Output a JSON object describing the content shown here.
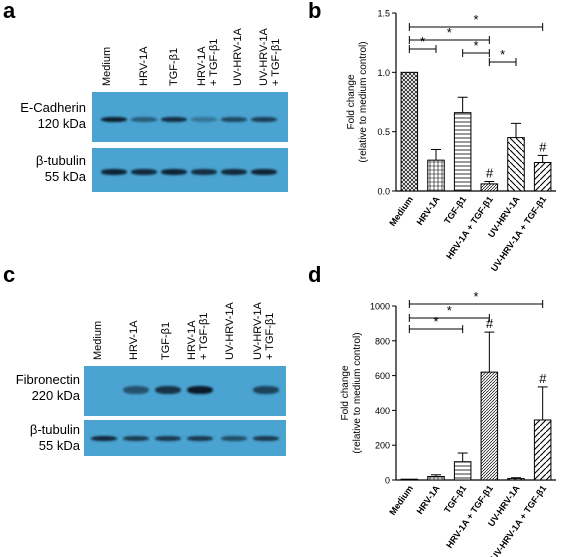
{
  "panels": {
    "a": "a",
    "b": "b",
    "c": "c",
    "d": "d"
  },
  "blot_a": {
    "lanes": [
      {
        "l1": "Medium",
        "l2": ""
      },
      {
        "l1": "HRV-1A",
        "l2": ""
      },
      {
        "l1": "TGF-β1",
        "l2": ""
      },
      {
        "l1": "HRV-1A",
        "l2": "+ TGF-β1"
      },
      {
        "l1": "UV-HRV-1A",
        "l2": ""
      },
      {
        "l1": "UV-HRV-1A",
        "l2": "+ TGF-β1"
      }
    ],
    "row1_label": [
      "E-Cadherin",
      "120 kDa"
    ],
    "row2_label": [
      "β-tubulin",
      "55 kDa"
    ],
    "row1_intensity": [
      0.95,
      0.35,
      0.8,
      0.1,
      0.55,
      0.65
    ],
    "row2_intensity": [
      0.9,
      0.85,
      0.9,
      0.8,
      0.85,
      0.9
    ]
  },
  "blot_c": {
    "lanes": [
      {
        "l1": "Medium",
        "l2": ""
      },
      {
        "l1": "HRV-1A",
        "l2": ""
      },
      {
        "l1": "TGF-β1",
        "l2": ""
      },
      {
        "l1": "HRV-1A",
        "l2": "+ TGF-β1"
      },
      {
        "l1": "UV-HRV-1A",
        "l2": ""
      },
      {
        "l1": "UV-HRV-1A",
        "l2": "+ TGF-β1"
      }
    ],
    "row1_label": [
      "Fibronectin",
      "220 kDa"
    ],
    "row2_label": [
      "β-tubulin",
      "55 kDa"
    ],
    "row1_intensity": [
      0.0,
      0.45,
      0.75,
      1.0,
      0.0,
      0.6
    ],
    "row2_intensity": [
      0.85,
      0.65,
      0.7,
      0.7,
      0.5,
      0.7
    ]
  },
  "chart_data": [
    {
      "type": "bar",
      "panel": "b",
      "categories": [
        "Medium",
        "HRV-1A",
        "TGF-β1",
        "HRV-1A + TGF-β1",
        "UV-HRV-1A",
        "UV-HRV-1A + TGF-β1"
      ],
      "values": [
        1.0,
        0.26,
        0.66,
        0.06,
        0.45,
        0.24
      ],
      "errors": [
        0.0,
        0.09,
        0.13,
        0.02,
        0.12,
        0.06
      ],
      "ylabel": "Fold change (relative to medium control)",
      "ylabel_lines": [
        "Fold change",
        "(relative to medium control)"
      ],
      "ylim": [
        0,
        1.5
      ],
      "yticks": [
        "0.0",
        "0.5",
        "1.0",
        "1.5"
      ],
      "hash_marks": [
        "",
        "",
        "",
        "#",
        "",
        "#"
      ],
      "significance": [
        {
          "from": 0,
          "to": 5,
          "label": "*"
        },
        {
          "from": 0,
          "to": 3,
          "label": "*"
        },
        {
          "from": 2,
          "to": 3,
          "label": "*"
        },
        {
          "from": 0,
          "to": 1,
          "label": "*"
        },
        {
          "from": 3,
          "to": 4,
          "label": "*"
        }
      ]
    },
    {
      "type": "bar",
      "panel": "d",
      "categories": [
        "Medium",
        "HRV-1A",
        "TGF-β1",
        "HRV-1A + TGF-β1",
        "UV-HRV-1A",
        "UV-HRV-1A + TGF-β1"
      ],
      "values": [
        1,
        20,
        105,
        620,
        8,
        345
      ],
      "errors": [
        0,
        10,
        50,
        230,
        5,
        190
      ],
      "ylabel": "Fold change (relative to medium control)",
      "ylabel_lines": [
        "Fold change",
        "(relative to medium control)"
      ],
      "ylim": [
        0,
        1000
      ],
      "yticks": [
        "0",
        "200",
        "400",
        "600",
        "800",
        "1000"
      ],
      "hash_marks": [
        "",
        "",
        "",
        "#",
        "",
        "#"
      ],
      "significance": [
        {
          "from": 0,
          "to": 5,
          "label": "*"
        },
        {
          "from": 0,
          "to": 3,
          "label": "*"
        },
        {
          "from": 0,
          "to": 2,
          "label": "*"
        }
      ]
    }
  ]
}
